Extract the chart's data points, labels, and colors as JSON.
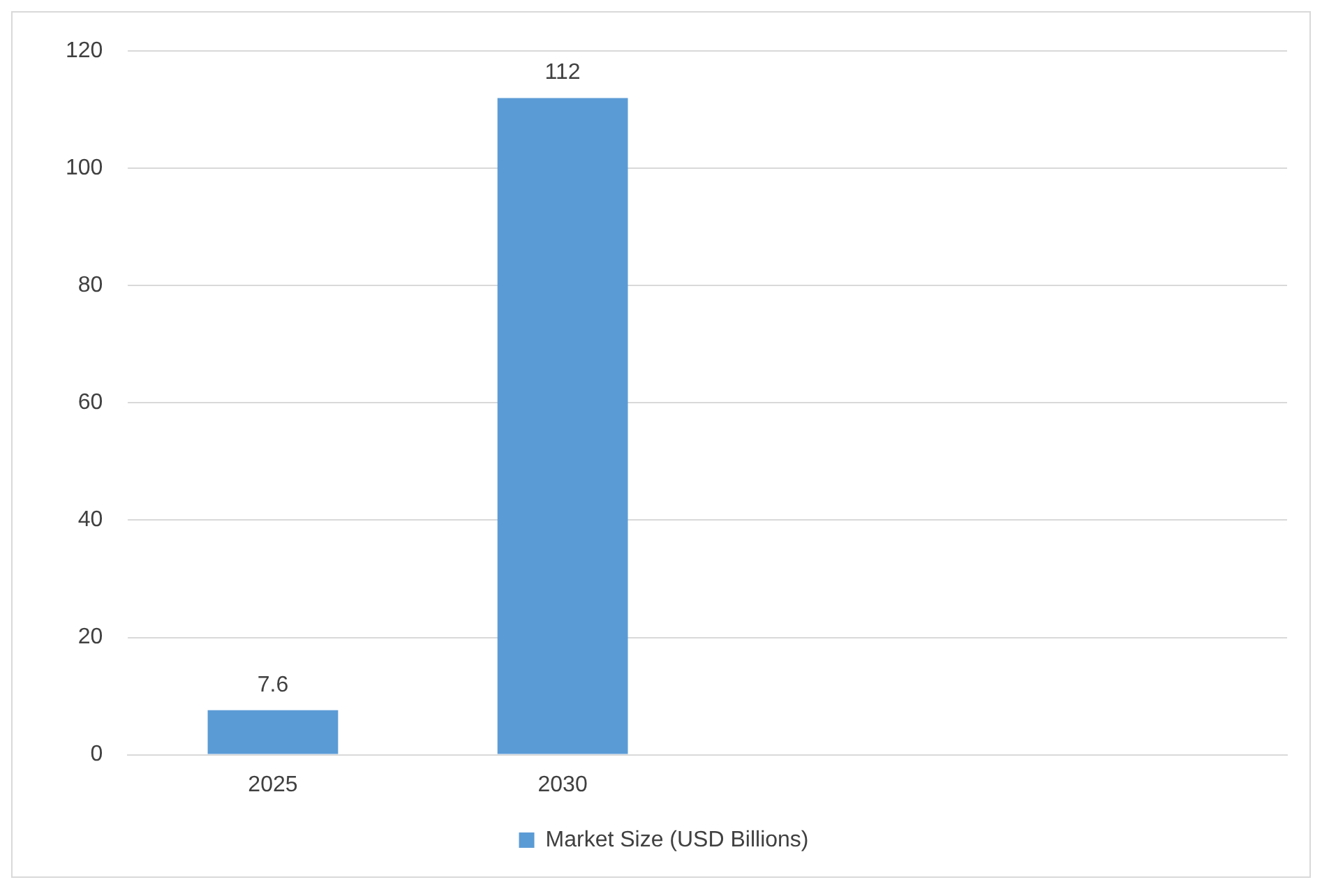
{
  "chart_data": {
    "type": "bar",
    "categories": [
      "2025",
      "2030",
      null,
      null
    ],
    "series": [
      {
        "name": "Market Size (USD Billions)",
        "color": "#5b9bd5",
        "values": [
          7.6,
          112,
          null,
          null
        ]
      }
    ],
    "ylim": [
      0,
      120
    ],
    "yticks": [
      0,
      20,
      40,
      60,
      80,
      100,
      120
    ],
    "grid": "y",
    "legend": "bottom",
    "data_labels": true
  }
}
